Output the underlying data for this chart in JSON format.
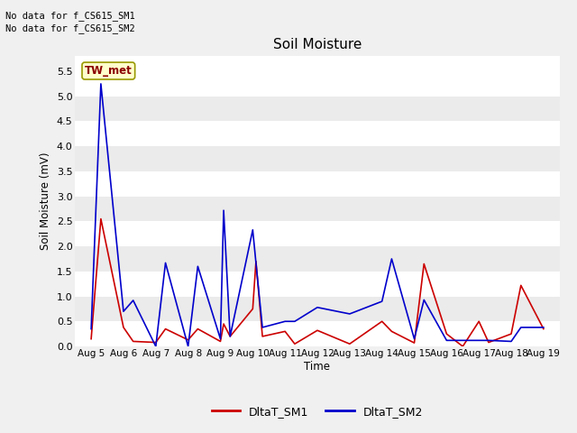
{
  "title": "Soil Moisture",
  "ylabel": "Soil Moisture (mV)",
  "xlabel": "Time",
  "no_data_text1": "No data for f_CS615_SM1",
  "no_data_text2": "No data for f_CS615_SM2",
  "station_label": "TW_met",
  "ylim": [
    0.0,
    5.8
  ],
  "yticks": [
    0.0,
    0.5,
    1.0,
    1.5,
    2.0,
    2.5,
    3.0,
    3.5,
    4.0,
    4.5,
    5.0,
    5.5
  ],
  "x_dates": [
    "Aug 5",
    "Aug 6",
    "Aug 7",
    "Aug 8",
    "Aug 9",
    "Aug 10",
    "Aug 11",
    "Aug 12",
    "Aug 13",
    "Aug 14",
    "Aug 15",
    "Aug 16",
    "Aug 17",
    "Aug 18",
    "Aug 19"
  ],
  "sm1_x": [
    0,
    0.3,
    1,
    1.3,
    2,
    2.3,
    3,
    3.3,
    4,
    4.1,
    4.3,
    5,
    5.1,
    5.3,
    6,
    6.3,
    7,
    8,
    9,
    9.3,
    10,
    10.3,
    11,
    11.5,
    12,
    12.3,
    13,
    13.3,
    14
  ],
  "sm1_y": [
    0.15,
    2.55,
    0.38,
    0.1,
    0.08,
    0.35,
    0.13,
    0.35,
    0.1,
    0.45,
    0.2,
    0.75,
    1.7,
    0.2,
    0.3,
    0.05,
    0.32,
    0.05,
    0.5,
    0.3,
    0.07,
    1.65,
    0.25,
    0.0,
    0.5,
    0.08,
    0.25,
    1.22,
    0.35
  ],
  "sm2_x": [
    0,
    0.3,
    1,
    1.3,
    2,
    2.3,
    3,
    3.3,
    4,
    4.1,
    4.3,
    5,
    5.1,
    5.3,
    6,
    6.3,
    7,
    8,
    9,
    9.3,
    10,
    10.3,
    11,
    12,
    12.3,
    13,
    13.3,
    14
  ],
  "sm2_y": [
    0.35,
    5.25,
    0.7,
    0.92,
    0.0,
    1.67,
    0.0,
    1.6,
    0.15,
    2.72,
    0.2,
    2.33,
    1.67,
    0.38,
    0.5,
    0.5,
    0.78,
    0.65,
    0.9,
    1.75,
    0.15,
    0.93,
    0.12,
    0.12,
    0.12,
    0.1,
    0.38,
    0.38
  ],
  "color_sm1": "#cc0000",
  "color_sm2": "#0000cc",
  "bg_color": "#f0f0f0",
  "plot_bg_light": "#ffffff",
  "plot_bg_dark": "#ebebeb",
  "legend_sm1": "DltaT_SM1",
  "legend_sm2": "DltaT_SM2",
  "band_colors": [
    "#ffffff",
    "#ebebeb",
    "#ffffff",
    "#ebebeb",
    "#ffffff",
    "#ebebeb",
    "#ffffff",
    "#ebebeb",
    "#ffffff",
    "#ebebeb",
    "#ffffff",
    "#ebebeb"
  ]
}
